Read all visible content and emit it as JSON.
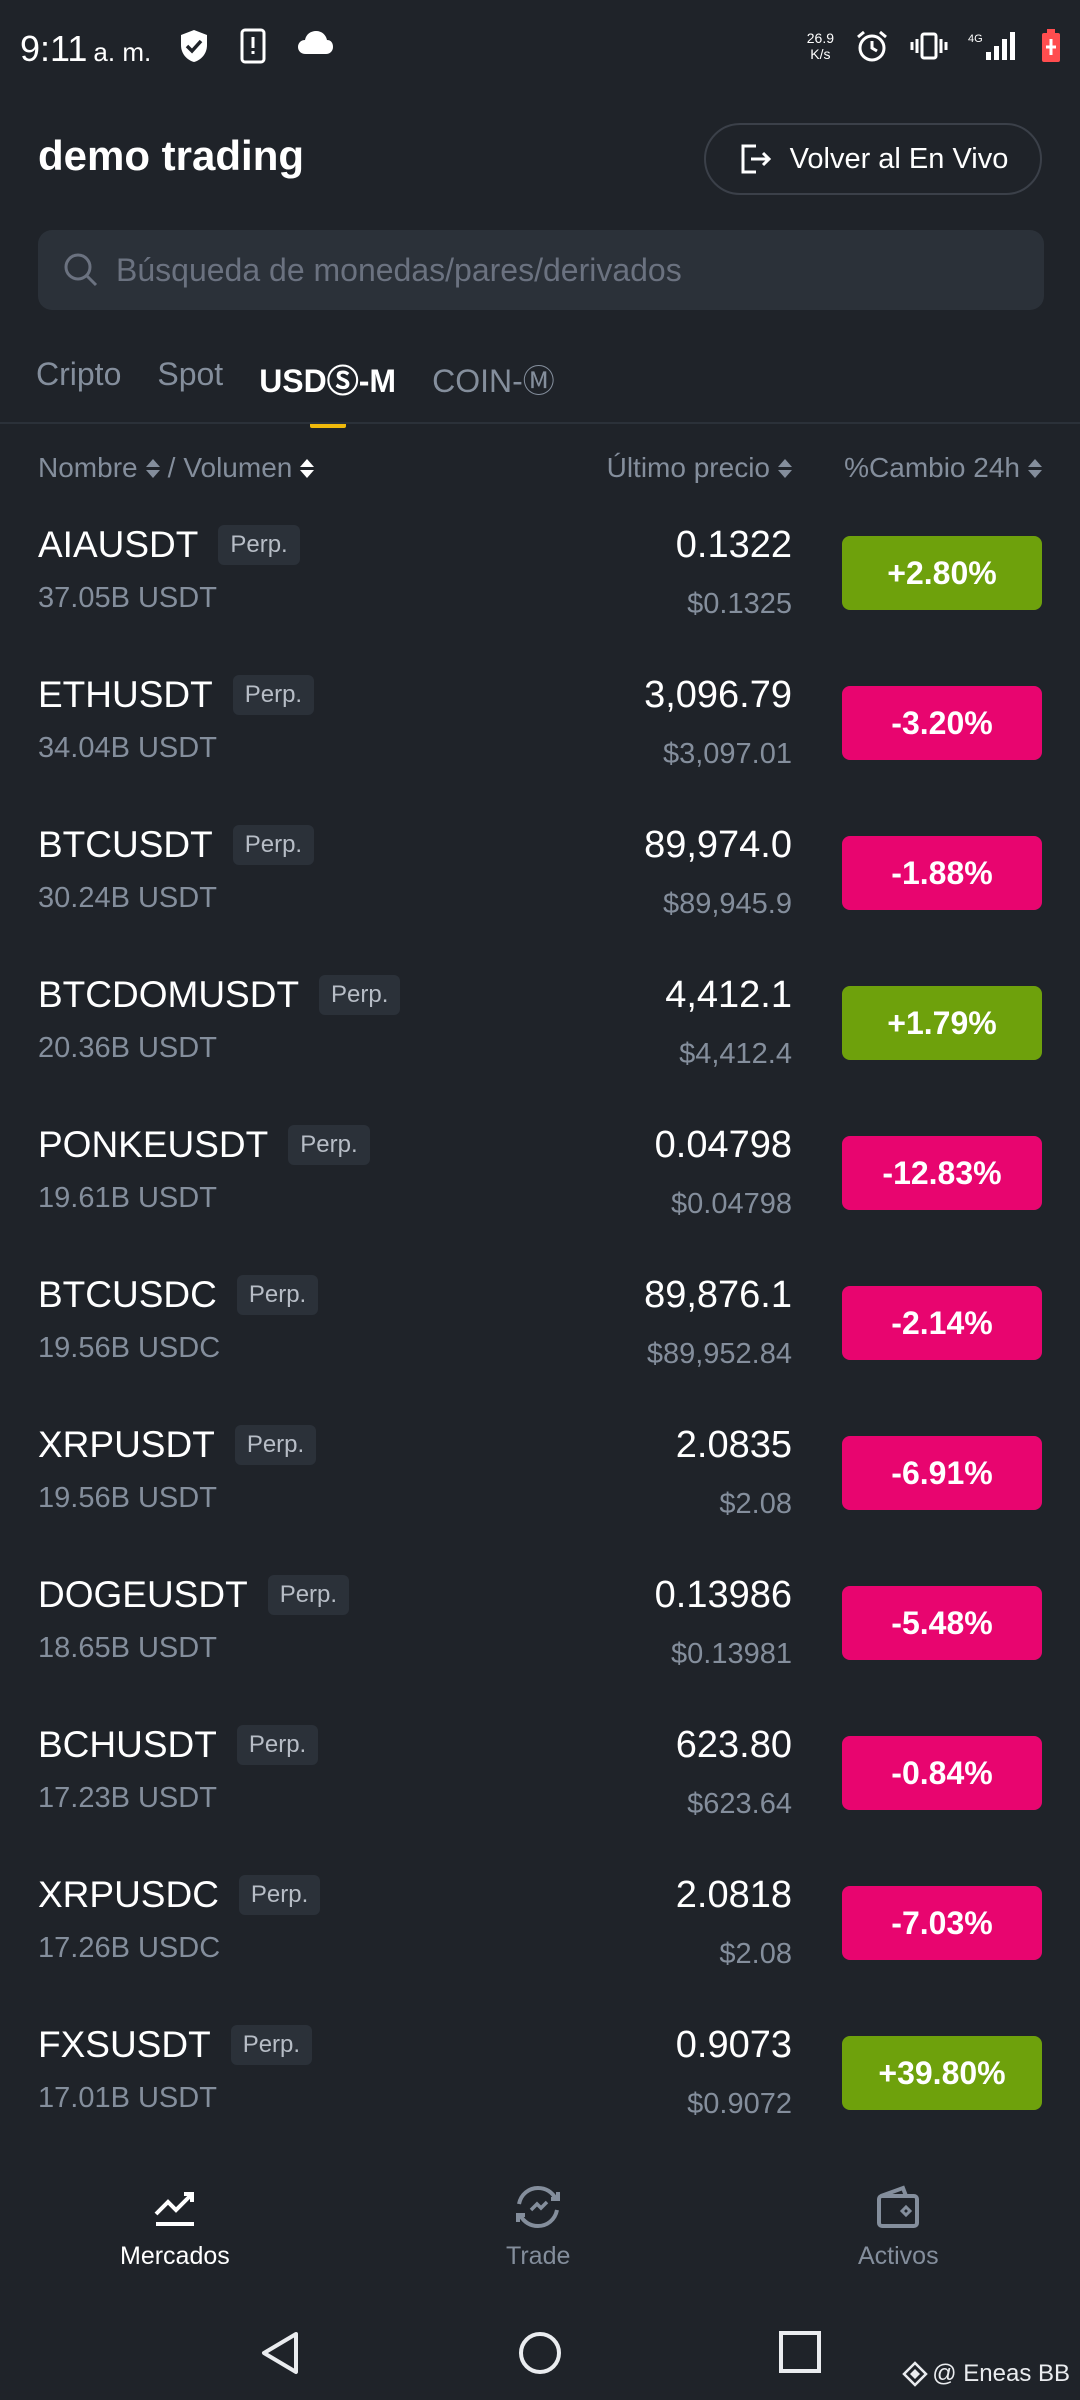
{
  "status_bar": {
    "time": "9:11",
    "ampm": "a. m.",
    "speed_value": "26.9",
    "speed_unit": "K/s",
    "network": "4G"
  },
  "header": {
    "title": "demo trading",
    "live_button_label": "Volver al En Vivo"
  },
  "search": {
    "placeholder": "Búsqueda de monedas/pares/derivados"
  },
  "tabs": [
    {
      "label": "Cripto",
      "active": false
    },
    {
      "label": "Spot",
      "active": false
    },
    {
      "label": "USDⓈ-M",
      "active": true
    },
    {
      "label": "COIN-Ⓜ",
      "active": false
    }
  ],
  "columns": {
    "name": "Nombre",
    "separator": "/",
    "volume": "Volumen",
    "last_price": "Último precio",
    "change": "%Cambio 24h"
  },
  "rows": [
    {
      "symbol": "AIAUSDT",
      "tag": "Perp.",
      "volume": "37.05B USDT",
      "price": "0.1322",
      "fiat": "$0.1325",
      "change": "+2.80%",
      "direction": "up"
    },
    {
      "symbol": "ETHUSDT",
      "tag": "Perp.",
      "volume": "34.04B USDT",
      "price": "3,096.79",
      "fiat": "$3,097.01",
      "change": "-3.20%",
      "direction": "down"
    },
    {
      "symbol": "BTCUSDT",
      "tag": "Perp.",
      "volume": "30.24B USDT",
      "price": "89,974.0",
      "fiat": "$89,945.9",
      "change": "-1.88%",
      "direction": "down"
    },
    {
      "symbol": "BTCDOMUSDT",
      "tag": "Perp.",
      "volume": "20.36B USDT",
      "price": "4,412.1",
      "fiat": "$4,412.4",
      "change": "+1.79%",
      "direction": "up"
    },
    {
      "symbol": "PONKEUSDT",
      "tag": "Perp.",
      "volume": "19.61B USDT",
      "price": "0.04798",
      "fiat": "$0.04798",
      "change": "-12.83%",
      "direction": "down"
    },
    {
      "symbol": "BTCUSDC",
      "tag": "Perp.",
      "volume": "19.56B USDC",
      "price": "89,876.1",
      "fiat": "$89,952.84",
      "change": "-2.14%",
      "direction": "down"
    },
    {
      "symbol": "XRPUSDT",
      "tag": "Perp.",
      "volume": "19.56B USDT",
      "price": "2.0835",
      "fiat": "$2.08",
      "change": "-6.91%",
      "direction": "down"
    },
    {
      "symbol": "DOGEUSDT",
      "tag": "Perp.",
      "volume": "18.65B USDT",
      "price": "0.13986",
      "fiat": "$0.13981",
      "change": "-5.48%",
      "direction": "down"
    },
    {
      "symbol": "BCHUSDT",
      "tag": "Perp.",
      "volume": "17.23B USDT",
      "price": "623.80",
      "fiat": "$623.64",
      "change": "-0.84%",
      "direction": "down"
    },
    {
      "symbol": "XRPUSDC",
      "tag": "Perp.",
      "volume": "17.26B USDC",
      "price": "2.0818",
      "fiat": "$2.08",
      "change": "-7.03%",
      "direction": "down"
    },
    {
      "symbol": "FXSUSDT",
      "tag": "Perp.",
      "volume": "17.01B USDT",
      "price": "0.9073",
      "fiat": "$0.9072",
      "change": "+39.80%",
      "direction": "up"
    }
  ],
  "bottom_nav": [
    {
      "label": "Mercados",
      "icon": "chart-line-icon",
      "active": true
    },
    {
      "label": "Trade",
      "icon": "trade-swap-icon",
      "active": false
    },
    {
      "label": "Activos",
      "icon": "wallet-icon",
      "active": false
    }
  ],
  "watermark": "@ Eneas BB",
  "colors": {
    "background": "#1f2329",
    "positive": "#6ea10c",
    "negative": "#e8056f",
    "accent": "#f0b90b"
  }
}
